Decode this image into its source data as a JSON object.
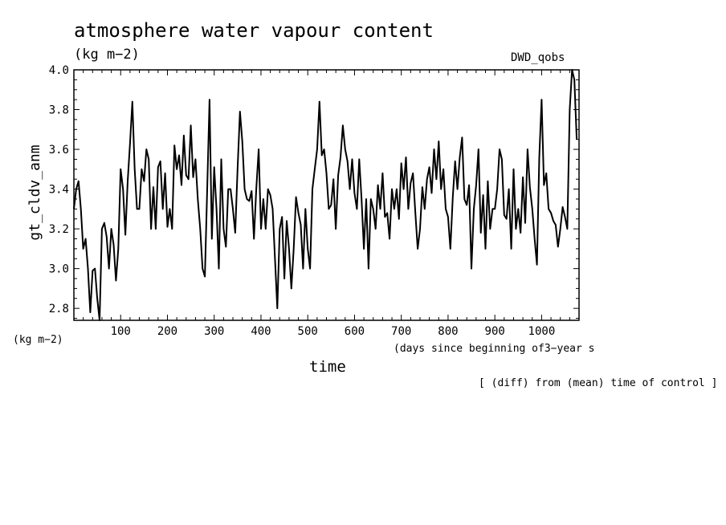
{
  "header": {
    "title": "atmosphere water vapour content",
    "units": "(kg m−2)",
    "source": "DWD_qobs"
  },
  "footer": {
    "left_units": "(kg m−2)",
    "x_sublabel": "(days since beginning of3−year s",
    "note": "[ (diff) from (mean) time of control ]"
  },
  "chart_data": {
    "type": "line",
    "title": "atmosphere water vapour content",
    "subtitle": "(kg m−2)",
    "xlabel": "time",
    "ylabel": "gt_cldv_anm",
    "xlim": [
      0,
      1080
    ],
    "ylim": [
      2.74,
      4.0
    ],
    "xticks": [
      100,
      200,
      300,
      400,
      500,
      600,
      700,
      800,
      900,
      1000
    ],
    "yticks": [
      2.8,
      3.0,
      3.2,
      3.4,
      3.6,
      3.8,
      4.0
    ],
    "ytick_labels": [
      "2.8",
      "3.0",
      "3.2",
      "3.4",
      "3.6",
      "3.8",
      "4.0"
    ],
    "grid": false,
    "line_color": "#000000",
    "series": [
      {
        "x": [
          0,
          5,
          10,
          15,
          20,
          25,
          30,
          35,
          40,
          45,
          50,
          55,
          60,
          65,
          70,
          75,
          80,
          85,
          90,
          95,
          100,
          105,
          110,
          115,
          120,
          125,
          130,
          135,
          140,
          145,
          150,
          155,
          160,
          165,
          170,
          175,
          180,
          185,
          190,
          195,
          200,
          205,
          210,
          215,
          220,
          225,
          230,
          235,
          240,
          245,
          250,
          255,
          260,
          265,
          270,
          275,
          280,
          285,
          290,
          295,
          300,
          305,
          310,
          315,
          320,
          325,
          330,
          335,
          340,
          345,
          350,
          355,
          360,
          365,
          370,
          375,
          380,
          385,
          390,
          395,
          400,
          405,
          410,
          415,
          420,
          425,
          430,
          435,
          440,
          445,
          450,
          455,
          460,
          465,
          470,
          475,
          480,
          485,
          490,
          495,
          500,
          505,
          510,
          515,
          520,
          525,
          530,
          535,
          540,
          545,
          550,
          555,
          560,
          565,
          570,
          575,
          580,
          585,
          590,
          595,
          600,
          605,
          610,
          615,
          620,
          625,
          630,
          635,
          640,
          645,
          650,
          655,
          660,
          665,
          670,
          675,
          680,
          685,
          690,
          695,
          700,
          705,
          710,
          715,
          720,
          725,
          730,
          735,
          740,
          745,
          750,
          755,
          760,
          765,
          770,
          775,
          780,
          785,
          790,
          795,
          800,
          805,
          810,
          815,
          820,
          825,
          830,
          835,
          840,
          845,
          850,
          855,
          860,
          865,
          870,
          875,
          880,
          885,
          890,
          895,
          900,
          905,
          910,
          915,
          920,
          925,
          930,
          935,
          940,
          945,
          950,
          955,
          960,
          965,
          970,
          975,
          980,
          985,
          990,
          995,
          1000,
          1005,
          1010,
          1015,
          1020,
          1025,
          1030,
          1035,
          1040,
          1045,
          1050,
          1055,
          1060,
          1065,
          1070,
          1075
        ],
        "values": [
          3.3,
          3.4,
          3.44,
          3.3,
          3.1,
          3.15,
          3.0,
          2.78,
          2.99,
          3.0,
          2.85,
          2.74,
          3.2,
          3.23,
          3.16,
          3.0,
          3.2,
          3.12,
          2.94,
          3.1,
          3.5,
          3.4,
          3.17,
          3.44,
          3.63,
          3.84,
          3.5,
          3.3,
          3.3,
          3.5,
          3.44,
          3.6,
          3.55,
          3.2,
          3.41,
          3.2,
          3.51,
          3.54,
          3.3,
          3.48,
          3.21,
          3.3,
          3.2,
          3.62,
          3.5,
          3.57,
          3.42,
          3.67,
          3.47,
          3.45,
          3.72,
          3.46,
          3.55,
          3.35,
          3.2,
          3.0,
          2.96,
          3.4,
          3.85,
          3.15,
          3.51,
          3.3,
          3.0,
          3.55,
          3.2,
          3.11,
          3.4,
          3.4,
          3.3,
          3.18,
          3.5,
          3.79,
          3.64,
          3.4,
          3.35,
          3.34,
          3.39,
          3.15,
          3.4,
          3.6,
          3.2,
          3.35,
          3.2,
          3.4,
          3.37,
          3.3,
          3.05,
          2.8,
          3.2,
          3.26,
          2.95,
          3.24,
          3.1,
          2.9,
          3.1,
          3.36,
          3.28,
          3.22,
          3.0,
          3.3,
          3.1,
          3.0,
          3.4,
          3.5,
          3.6,
          3.84,
          3.57,
          3.6,
          3.48,
          3.3,
          3.32,
          3.45,
          3.2,
          3.47,
          3.56,
          3.72,
          3.6,
          3.54,
          3.4,
          3.55,
          3.38,
          3.3,
          3.55,
          3.35,
          3.1,
          3.35,
          3.0,
          3.35,
          3.3,
          3.2,
          3.42,
          3.3,
          3.48,
          3.26,
          3.28,
          3.15,
          3.4,
          3.3,
          3.4,
          3.25,
          3.53,
          3.4,
          3.56,
          3.3,
          3.43,
          3.48,
          3.28,
          3.1,
          3.2,
          3.41,
          3.3,
          3.45,
          3.51,
          3.38,
          3.6,
          3.45,
          3.64,
          3.4,
          3.5,
          3.3,
          3.26,
          3.1,
          3.36,
          3.54,
          3.4,
          3.56,
          3.66,
          3.35,
          3.32,
          3.42,
          3.0,
          3.3,
          3.42,
          3.6,
          3.18,
          3.37,
          3.1,
          3.44,
          3.2,
          3.3,
          3.3,
          3.4,
          3.6,
          3.55,
          3.27,
          3.25,
          3.4,
          3.1,
          3.5,
          3.2,
          3.3,
          3.18,
          3.46,
          3.23,
          3.6,
          3.41,
          3.3,
          3.15,
          3.02,
          3.56,
          3.85,
          3.42,
          3.48,
          3.3,
          3.28,
          3.24,
          3.22,
          3.11,
          3.2,
          3.31,
          3.26,
          3.2,
          3.8,
          4.0,
          3.95,
          3.65
        ]
      }
    ]
  }
}
